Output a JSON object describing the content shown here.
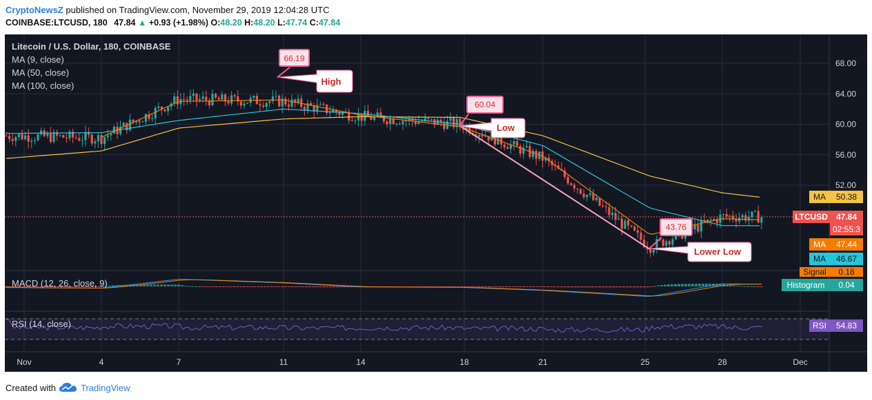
{
  "header": {
    "author": "CryptoNewsZ",
    "published": " published on TradingView.com, November 29, 2019 12:04:28 UTC",
    "symbol": "COINBASE:LTCUSD, 180",
    "price": "47.84",
    "change_arrow": "▲",
    "change": "+0.93 (+1.98%)",
    "o_label": "O:",
    "o_val": "48.20",
    "h_label": "H:",
    "h_val": "48.20",
    "l_label": "L:",
    "l_val": "47.74",
    "c_label": "C:",
    "c_val": "47.84"
  },
  "legend": {
    "title": "Litecoin / U.S. Dollar, 180, COINBASE",
    "ma9": "MA (9, close)",
    "ma50": "MA (50, close)",
    "ma100": "MA (100, close)",
    "macd": "MACD (12, 26, close, 9)",
    "rsi": "RSI (14, close)"
  },
  "price_axis": [
    "68.00",
    "64.00",
    "60.00",
    "56.00",
    "52.00"
  ],
  "time_axis": [
    "Nov",
    "4",
    "7",
    "11",
    "14",
    "18",
    "21",
    "25",
    "28",
    "Dec"
  ],
  "badges": {
    "ma100_label": "MA",
    "ma100_val": "50.38",
    "ltc_label": "LTCUSD",
    "ltc_val": "47.84",
    "countdown": "02:55:3",
    "ma9_label": "MA",
    "ma9_val": "47.44",
    "ma50_label": "MA",
    "ma50_val": "46.67",
    "signal_label": "Signal",
    "signal_val": "0.18",
    "hist_label": "Histogram",
    "hist_val": "0.04",
    "rsi_label": "RSI",
    "rsi_val": "54.83"
  },
  "annotations": {
    "high_price": "66.19",
    "high_label": "High",
    "low_price": "60.04",
    "low_label": "Low",
    "lowerlow_price": "43.76",
    "lowerlow_label": "Lower Low"
  },
  "colors": {
    "background": "#131722",
    "up": "#26a69a",
    "down": "#ef5350",
    "ma9": "#f57c00",
    "ma50": "#26c6da",
    "ma100": "#f6c344",
    "rsi": "#7e57c2",
    "annotation": "#f06292"
  },
  "chart_data": {
    "type": "line",
    "title": "Litecoin / U.S. Dollar, 180, COINBASE",
    "ylim": [
      44,
      70
    ],
    "x": [
      "Nov 1",
      "Nov 4",
      "Nov 7",
      "Nov 11",
      "Nov 14",
      "Nov 18",
      "Nov 21",
      "Nov 25",
      "Nov 28",
      "Nov 29"
    ],
    "series": [
      {
        "name": "LTCUSD",
        "values": [
          58.5,
          58.2,
          63.3,
          63.0,
          61.0,
          60.0,
          55.5,
          43.9,
          47.9,
          47.84
        ]
      },
      {
        "name": "MA (9, close)",
        "values": [
          58.4,
          58.3,
          63.0,
          63.2,
          61.2,
          59.7,
          55.8,
          45.5,
          47.6,
          47.44
        ]
      },
      {
        "name": "MA (50, close)",
        "values": [
          58.8,
          58.9,
          60.5,
          62.0,
          61.4,
          60.0,
          57.2,
          49.0,
          46.7,
          46.67
        ]
      },
      {
        "name": "MA (100, close)",
        "values": [
          55.5,
          56.5,
          59.5,
          60.7,
          61.0,
          60.9,
          58.5,
          53.2,
          51.0,
          50.38
        ]
      }
    ],
    "annotations": [
      {
        "label": "High",
        "value": 66.19,
        "x": "Nov 10"
      },
      {
        "label": "Low",
        "value": 60.04,
        "x": "Nov 17"
      },
      {
        "label": "Lower Low",
        "value": 43.76,
        "x": "Nov 25"
      }
    ],
    "indicators": {
      "macd": {
        "params": "12, 26, close, 9",
        "signal": 0.18,
        "histogram": 0.04
      },
      "rsi": {
        "params": "14, close",
        "value": 54.83
      }
    }
  }
}
